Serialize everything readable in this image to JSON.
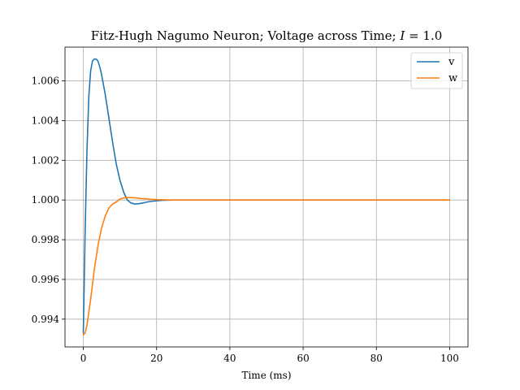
{
  "chart_data": {
    "type": "line",
    "title_prefix": "Fitz-Hugh Nagumo Neuron; Voltage across Time; ",
    "title_var": "I",
    "title_suffix": " = 1.0",
    "xlabel": "Time (ms)",
    "ylabel": "",
    "xlim": [
      -5,
      105
    ],
    "ylim": [
      0.9926,
      1.0077
    ],
    "xticks": [
      0,
      20,
      40,
      60,
      80,
      100
    ],
    "yticks": [
      0.994,
      0.996,
      0.998,
      1.0,
      1.002,
      1.004,
      1.006
    ],
    "ytick_labels": [
      "0.994",
      "0.996",
      "0.998",
      "1.000",
      "1.002",
      "1.004",
      "1.006"
    ],
    "grid": true,
    "legend_position": "top-right",
    "series": [
      {
        "name": "v",
        "color": "#1f77b4",
        "x": [
          0,
          0.5,
          1,
          1.5,
          2,
          2.5,
          3,
          3.5,
          4,
          4.5,
          5,
          6,
          7,
          8,
          9,
          10,
          11,
          12,
          13,
          14,
          15,
          16,
          17,
          18,
          20,
          22,
          25,
          30,
          40,
          60,
          80,
          100
        ],
        "y": [
          0.9933,
          0.9985,
          1.0025,
          1.0052,
          1.0065,
          1.007,
          1.0071,
          1.0071,
          1.007,
          1.0067,
          1.0063,
          1.0053,
          1.0041,
          1.0029,
          1.0018,
          1.001,
          1.0004,
          1.0,
          0.99985,
          0.9998,
          0.99981,
          0.99984,
          0.99988,
          0.99992,
          0.99996,
          0.99999,
          1.0,
          1.0,
          1.0,
          1.0,
          1.0,
          1.0
        ]
      },
      {
        "name": "w",
        "color": "#ff7f0e",
        "x": [
          0,
          0.5,
          1,
          2,
          3,
          4,
          5,
          6,
          7,
          8,
          9,
          10,
          11,
          12,
          13,
          14,
          15,
          16,
          17,
          18,
          20,
          22,
          25,
          30,
          40,
          60,
          80,
          100
        ],
        "y": [
          0.9932,
          0.9933,
          0.9937,
          0.995,
          0.9965,
          0.9977,
          0.9986,
          0.9992,
          0.9996,
          0.9998,
          0.9999,
          1.00005,
          1.0001,
          1.00012,
          1.00012,
          1.00011,
          1.00009,
          1.00007,
          1.00006,
          1.00004,
          1.00002,
          1.00001,
          1.0,
          1.0,
          1.0,
          1.0,
          1.0,
          1.0
        ]
      }
    ]
  }
}
